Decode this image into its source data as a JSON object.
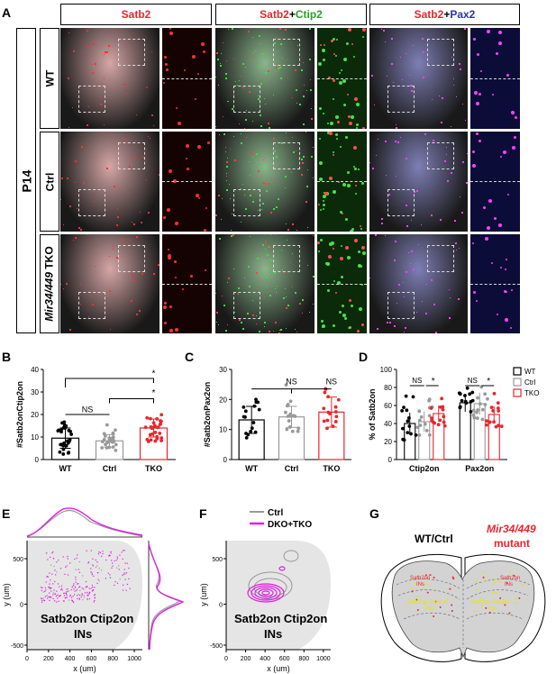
{
  "panels": {
    "A": "A",
    "B": "B",
    "C": "C",
    "D": "D",
    "E": "E",
    "F": "F",
    "G": "G"
  },
  "panel_a": {
    "headers": {
      "satb2": "Satb2",
      "ctip2": "Ctip2",
      "pax2": "Pax2",
      "plus": "+"
    },
    "age": "P14",
    "rows": {
      "wt": "WT",
      "ctrl": "Ctrl",
      "mir": "Mir34/449",
      "tko": " TKO"
    }
  },
  "chart_data": [
    {
      "type": "bar",
      "panel": "B",
      "ylabel": "#Satb2onCtip2on",
      "categories": [
        "WT",
        "Ctrl",
        "TKO"
      ],
      "values": [
        9.5,
        8.3,
        14
      ],
      "errors": [
        4.5,
        2.8,
        4
      ],
      "ylim": [
        0,
        40
      ],
      "yticks": [
        "0",
        "10",
        "20",
        "30",
        "40"
      ],
      "colors": [
        "#000000",
        "#999999",
        "#e8262d"
      ],
      "annotations": [
        "NS",
        "*",
        "*"
      ]
    },
    {
      "type": "bar",
      "panel": "C",
      "ylabel": "#Satb2onPax2on",
      "categories": [
        "WT",
        "Ctrl",
        "TKO"
      ],
      "values": [
        13.2,
        14.2,
        15.8
      ],
      "errors": [
        4.5,
        3.5,
        5
      ],
      "ylim": [
        0,
        30
      ],
      "yticks": [
        "0",
        "10",
        "20",
        "30"
      ],
      "colors": [
        "#000000",
        "#999999",
        "#e8262d"
      ],
      "annotations": [
        "NS",
        "NS"
      ]
    },
    {
      "type": "bar",
      "panel": "D",
      "ylabel": "% of Satb2on",
      "categories": [
        "Ctip2on",
        "Pax2on"
      ],
      "series": [
        {
          "name": "WT",
          "values": [
            40,
            63
          ],
          "errors": [
            12,
            10
          ]
        },
        {
          "name": "Ctrl",
          "values": [
            42,
            62
          ],
          "errors": [
            11,
            12
          ]
        },
        {
          "name": "TKO",
          "values": [
            51,
            50
          ],
          "errors": [
            9,
            9
          ]
        }
      ],
      "ylim": [
        0,
        100
      ],
      "yticks": [
        "0",
        "20",
        "40",
        "60",
        "80",
        "100"
      ],
      "colors": [
        "#000000",
        "#999999",
        "#e8262d"
      ],
      "annotations": [
        "NS",
        "*",
        "NS",
        "*"
      ],
      "legend": "right"
    }
  ],
  "panel_e": {
    "xlabel": "x (um)",
    "ylabel": "y (um)",
    "xticks": [
      "0",
      "200",
      "400",
      "600",
      "800",
      "1000"
    ],
    "yticks": [
      "500",
      "0",
      "-500"
    ],
    "caption_l1": "Satb2on Ctip2on",
    "caption_l2": "INs"
  },
  "panel_f": {
    "xlabel": "x (um)",
    "ylabel": "y (um)",
    "xticks": [
      "0",
      "200",
      "400",
      "600",
      "800",
      "1000"
    ],
    "yticks": [
      "500",
      "0",
      "-500"
    ],
    "legend": [
      {
        "name": "Ctrl",
        "color": "#999999"
      },
      {
        "name": "DKO+TKO",
        "color": "#e020e0"
      }
    ],
    "caption_l1": "Satb2on Ctip2on",
    "caption_l2": "INs"
  },
  "panel_g": {
    "left_title": "WT/Ctrl",
    "right_title_1": "Mir34/449",
    "right_title_2": "mutant",
    "label_satb2": "Satb2on",
    "label_ins": "INs",
    "label_dbl": "Satb2on Ctip2on"
  }
}
